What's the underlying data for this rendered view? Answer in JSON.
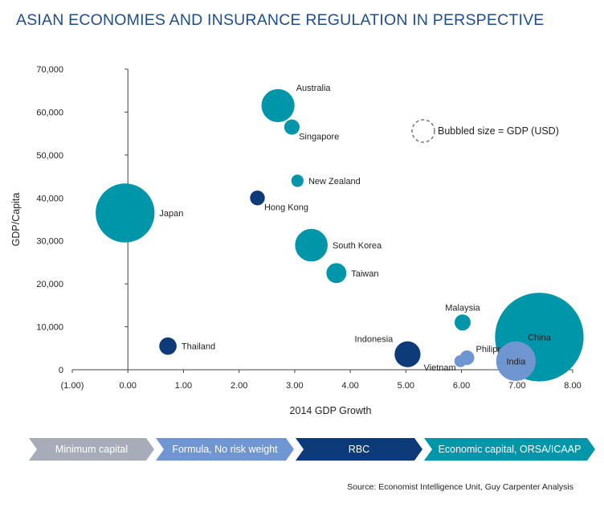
{
  "title": "ASIAN ECONOMIES AND INSURANCE REGULATION IN PERSPECTIVE",
  "source": "Source: Economist Intelligence Unit, Guy Carpenter Analysis",
  "stages": [
    {
      "label": "Minimum capital",
      "color": "#a7acb8",
      "text_color": "#ffffff"
    },
    {
      "label": "Formula, No risk weight",
      "color": "#6f96d1",
      "text_color": "#ffffff"
    },
    {
      "label": "RBC",
      "color": "#0d3b7a",
      "text_color": "#ffffff"
    },
    {
      "label": "Economic capital, ORSA/ICAAP",
      "color": "#0096aa",
      "text_color": "#ffffff"
    }
  ],
  "chart_data": {
    "type": "scatter",
    "subtype": "bubble",
    "xlabel": "2014 GDP Growth",
    "ylabel": "GDP/Capita",
    "xlim": [
      -1,
      8
    ],
    "ylim": [
      0,
      70000
    ],
    "xticks": [
      "(1.00)",
      "0.00",
      "1.00",
      "2.00",
      "3.00",
      "4.00",
      "5.00",
      "6.00",
      "7.00",
      "8.00"
    ],
    "yticks": [
      "0",
      "10,000",
      "20,000",
      "30,000",
      "40,000",
      "50,000",
      "60,000",
      "70,000"
    ],
    "size_legend": "Bubbled size = GDP (USD)",
    "colors": {
      "teal": "#0096aa",
      "navy": "#0d3b7a",
      "light_blue": "#6f96d1"
    },
    "points": [
      {
        "name": "Australia",
        "x": 2.7,
        "y": 61500,
        "size": 1.45,
        "color": "teal",
        "label_pos": "upper-right"
      },
      {
        "name": "Singapore",
        "x": 2.95,
        "y": 56500,
        "size": 0.31,
        "color": "teal",
        "label_pos": "lower-right"
      },
      {
        "name": "New Zealand",
        "x": 3.05,
        "y": 44000,
        "size": 0.2,
        "color": "teal",
        "label_pos": "right"
      },
      {
        "name": "Hong Kong",
        "x": 2.33,
        "y": 40000,
        "size": 0.29,
        "color": "navy",
        "label_pos": "lower-right"
      },
      {
        "name": "Japan",
        "x": -0.05,
        "y": 36500,
        "size": 4.6,
        "color": "teal",
        "label_pos": "right"
      },
      {
        "name": "South Korea",
        "x": 3.3,
        "y": 29000,
        "size": 1.41,
        "color": "teal",
        "label_pos": "right"
      },
      {
        "name": "Taiwan",
        "x": 3.75,
        "y": 22500,
        "size": 0.53,
        "color": "teal",
        "label_pos": "right"
      },
      {
        "name": "Malaysia",
        "x": 6.02,
        "y": 11000,
        "size": 0.34,
        "color": "teal",
        "label_pos": "top"
      },
      {
        "name": "China",
        "x": 7.4,
        "y": 7600,
        "size": 10.4,
        "color": "teal",
        "label_pos": "center"
      },
      {
        "name": "Thailand",
        "x": 0.72,
        "y": 5500,
        "size": 0.4,
        "color": "navy",
        "label_pos": "right"
      },
      {
        "name": "Indonesia",
        "x": 5.03,
        "y": 3600,
        "size": 0.89,
        "color": "navy",
        "label_pos": "upper-left"
      },
      {
        "name": "Philippines",
        "x": 6.1,
        "y": 2800,
        "size": 0.28,
        "color": "light_blue",
        "label_pos": "upper-right"
      },
      {
        "name": "Vietnam",
        "x": 5.98,
        "y": 2000,
        "size": 0.19,
        "color": "light_blue",
        "label_pos": "left"
      },
      {
        "name": "India",
        "x": 6.98,
        "y": 2000,
        "size": 2.07,
        "color": "light_blue",
        "label_pos": "center"
      }
    ]
  }
}
